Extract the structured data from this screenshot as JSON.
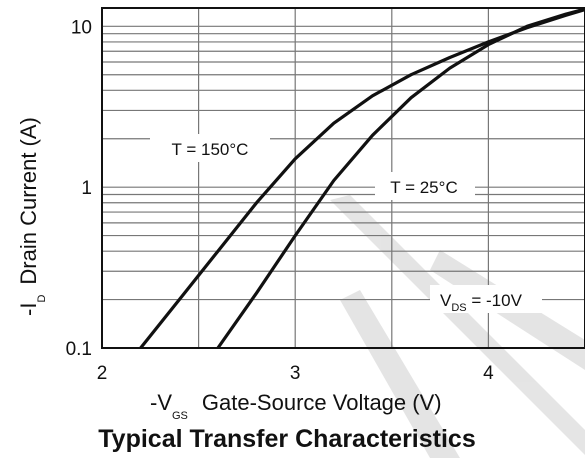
{
  "chart_data": {
    "type": "line",
    "title": "Typical Transfer Characteristics",
    "xlabel": {
      "prefix": "-V",
      "sub": "GS",
      "text": "Gate-Source Voltage (V)"
    },
    "ylabel": {
      "prefix": "-I",
      "sub": "D",
      "text": "Drain Current (A)"
    },
    "xlim": [
      2,
      4.5
    ],
    "ylim": [
      0.1,
      13
    ],
    "y_scale": "log",
    "grid": true,
    "x_ticks": [
      {
        "value": 2,
        "label": "2"
      },
      {
        "value": 3,
        "label": "3"
      },
      {
        "value": 4,
        "label": "4"
      }
    ],
    "y_ticks": [
      {
        "value": 0.1,
        "label": "0.1"
      },
      {
        "value": 1,
        "label": "1"
      },
      {
        "value": 10,
        "label": "10"
      }
    ],
    "series": [
      {
        "name": "T = 150°C",
        "x": [
          2.2,
          2.4,
          2.6,
          2.8,
          3.0,
          3.2,
          3.4,
          3.6,
          3.8,
          4.0,
          4.2,
          4.4,
          4.5
        ],
        "y": [
          0.1,
          0.2,
          0.4,
          0.8,
          1.5,
          2.5,
          3.7,
          5.0,
          6.4,
          8.0,
          9.8,
          11.7,
          12.7
        ]
      },
      {
        "name": "T = 25°C",
        "x": [
          2.6,
          2.8,
          3.0,
          3.2,
          3.4,
          3.6,
          3.8,
          4.0,
          4.2,
          4.4,
          4.5
        ],
        "y": [
          0.1,
          0.22,
          0.5,
          1.1,
          2.1,
          3.6,
          5.5,
          7.7,
          10.0,
          11.9,
          12.8
        ]
      }
    ],
    "annotations": [
      {
        "text": "T = 150°C"
      },
      {
        "text": "T = 25°C"
      },
      {
        "prefix": "V",
        "sub": "DS",
        "text": " = -10V"
      }
    ]
  }
}
